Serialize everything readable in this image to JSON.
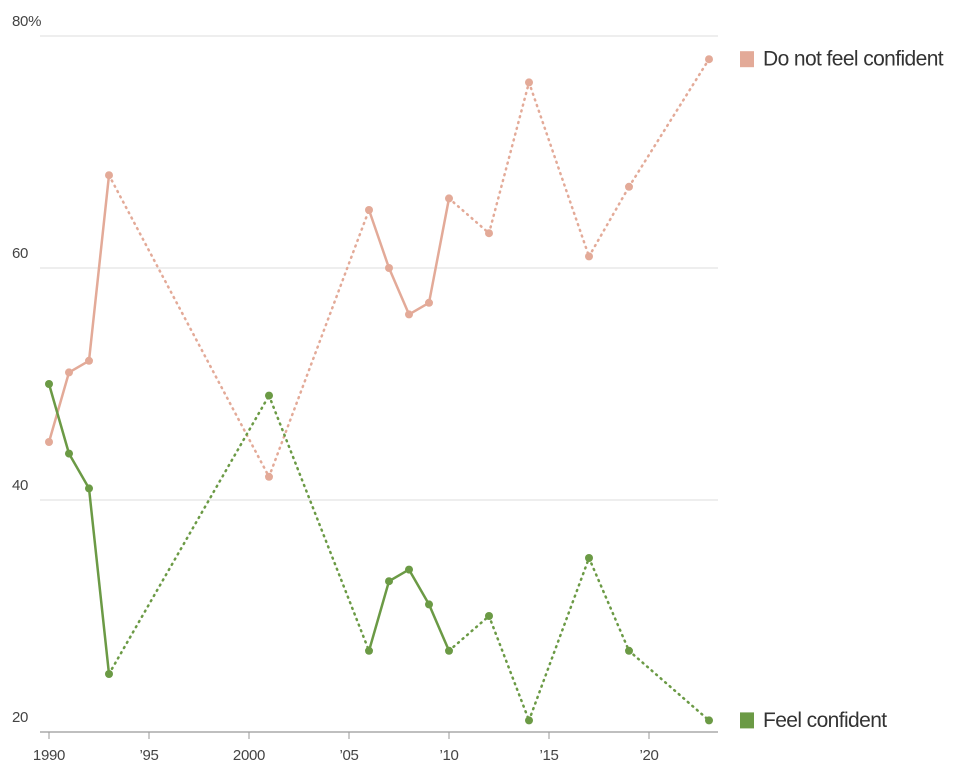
{
  "chart_data": {
    "type": "line",
    "x": [
      1990,
      1991,
      1992,
      1993,
      2001,
      2006,
      2007,
      2008,
      2009,
      2010,
      2012,
      2014,
      2017,
      2019,
      2023
    ],
    "series": [
      {
        "name": "Do not feel confident",
        "color": "#e3aa98",
        "values": [
          45,
          51,
          52,
          68,
          42,
          65,
          60,
          56,
          57,
          66,
          63,
          76,
          61,
          67,
          78
        ]
      },
      {
        "name": "Feel confident",
        "color": "#6b9a45",
        "values": [
          50,
          44,
          41,
          25,
          49,
          27,
          33,
          34,
          31,
          27,
          30,
          21,
          35,
          27,
          21
        ]
      }
    ],
    "xlim": [
      1990,
      2023
    ],
    "xticks": [
      1990,
      {
        "value": 1995,
        "label": "’95"
      },
      2000,
      {
        "value": 2005,
        "label": "’05"
      },
      {
        "value": 2010,
        "label": "’10"
      },
      {
        "value": 2015,
        "label": "’15"
      },
      {
        "value": 2020,
        "label": "’20"
      }
    ],
    "ylim": [
      20,
      80
    ],
    "yticks": [
      20,
      40,
      60,
      {
        "value": 80,
        "label": "80%"
      }
    ],
    "grid": true
  }
}
